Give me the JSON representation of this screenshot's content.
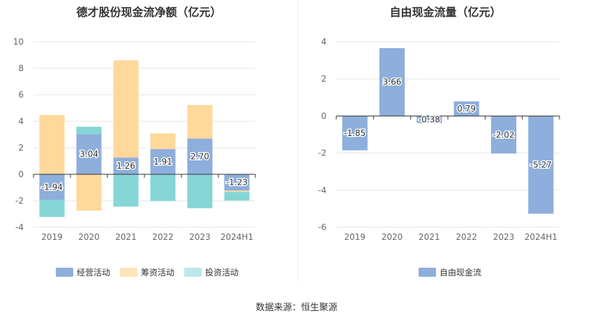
{
  "source_text": "数据来源：恒生聚源",
  "colors": {
    "operating": "#8eaedc",
    "financing": "#fed99b",
    "investing": "#86d6d6",
    "fcf": "#8eaedc",
    "grid": "#e6e6e6",
    "axis": "#333333",
    "tick": "#666666"
  },
  "chart_data": [
    {
      "type": "bar",
      "stacked": true,
      "title": "德才股份现金流净额（亿元）",
      "categories": [
        "2019",
        "2020",
        "2021",
        "2022",
        "2023",
        "2024H1"
      ],
      "ylim": [
        -4,
        10
      ],
      "yticks": [
        -4,
        -2,
        0,
        2,
        4,
        6,
        8,
        10
      ],
      "grid": true,
      "legend_position": "bottom",
      "series": [
        {
          "name": "经营活动",
          "color": "#8eaedc",
          "values": [
            -1.94,
            3.04,
            1.26,
            1.91,
            2.7,
            -1.23
          ],
          "show_labels": true
        },
        {
          "name": "筹资活动",
          "color": "#fed99b",
          "values": [
            4.48,
            -2.75,
            7.34,
            1.18,
            2.53,
            -0.1
          ],
          "show_labels": false
        },
        {
          "name": "投资活动",
          "color": "#86d6d6",
          "values": [
            -1.28,
            0.55,
            -2.44,
            -2.02,
            -2.56,
            -0.65
          ],
          "show_labels": false
        }
      ]
    },
    {
      "type": "bar",
      "title": "自由现金流量（亿元）",
      "categories": [
        "2019",
        "2020",
        "2021",
        "2022",
        "2023",
        "2024H1"
      ],
      "ylim": [
        -6,
        4
      ],
      "yticks": [
        -6,
        -4,
        -2,
        0,
        2,
        4
      ],
      "grid": true,
      "legend_position": "bottom",
      "series": [
        {
          "name": "自由现金流",
          "color": "#8eaedc",
          "values": [
            -1.85,
            3.66,
            -0.38,
            0.79,
            -2.02,
            -5.27
          ],
          "show_labels": true
        }
      ]
    }
  ]
}
